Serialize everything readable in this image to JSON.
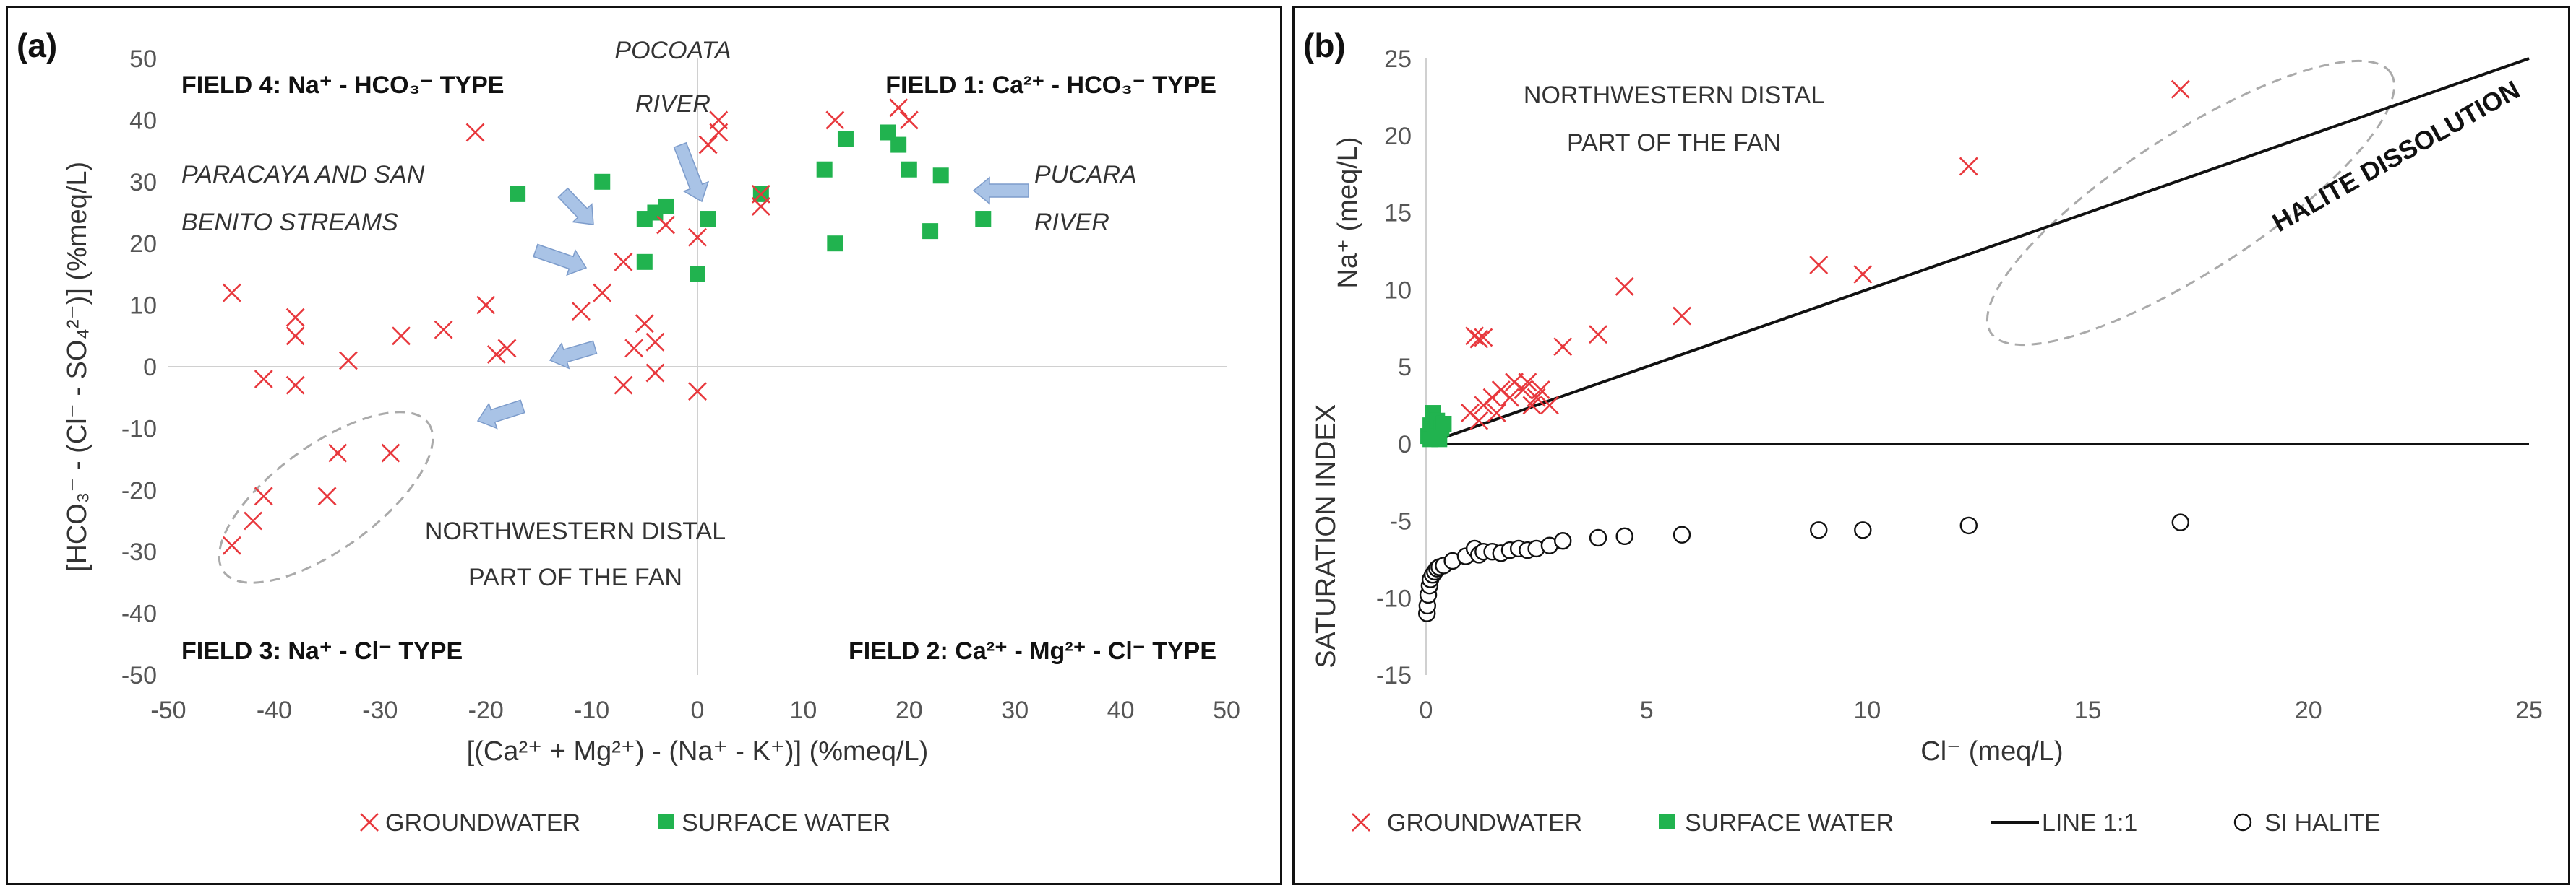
{
  "chart_data": [
    {
      "panel": "(a)",
      "type": "scatter",
      "xlabel": "[(Ca²⁺ + Mg²⁺) - (Na⁺ - K⁺)] (%meq/L)",
      "ylabel": "[HCO₃⁻ - (Cl⁻ - SO₄²⁻)] (%meq/L)",
      "xlim": [
        -50,
        50
      ],
      "ylim": [
        -50,
        50
      ],
      "xticks": [
        "-50",
        "-40",
        "-30",
        "-20",
        "-10",
        "0",
        "10",
        "20",
        "30",
        "40",
        "50"
      ],
      "yticks": [
        "50",
        "40",
        "30",
        "20",
        "10",
        "0",
        "-10",
        "-20",
        "-30",
        "-40",
        "-50"
      ],
      "grid": false,
      "legend_position": "bottom",
      "legend": [
        "GROUNDWATER",
        "SURFACE WATER"
      ],
      "field_labels": [
        "FIELD 4: Na⁺ - HCO₃⁻ TYPE",
        "FIELD 1: Ca²⁺ - HCO₃⁻ TYPE",
        "FIELD 3: Na⁺ - Cl⁻ TYPE",
        "FIELD 2: Ca²⁺ - Mg²⁺ - Cl⁻ TYPE"
      ],
      "annotations": {
        "pocoata": [
          "POCOATA",
          "RIVER"
        ],
        "paracaya": [
          "PARACAYA AND SAN",
          "BENITO STREAMS"
        ],
        "pucara": [
          "PUCARA",
          "RIVER"
        ],
        "distal": [
          "NORTHWESTERN DISTAL",
          "PART OF THE FAN"
        ]
      },
      "series": [
        {
          "name": "GROUNDWATER",
          "color": "#e8383d",
          "marker": "x",
          "points": [
            [
              -44,
              12
            ],
            [
              -38,
              8
            ],
            [
              -38,
              5
            ],
            [
              -38,
              -3
            ],
            [
              -41,
              -2
            ],
            [
              -33,
              1
            ],
            [
              -28,
              5
            ],
            [
              -24,
              6
            ],
            [
              -21,
              38
            ],
            [
              -20,
              10
            ],
            [
              -19,
              2
            ],
            [
              -18,
              3
            ],
            [
              -11,
              9
            ],
            [
              -9,
              12
            ],
            [
              -7,
              17
            ],
            [
              -6,
              3
            ],
            [
              -7,
              -3
            ],
            [
              -5,
              7
            ],
            [
              -4,
              4
            ],
            [
              -4,
              -1
            ],
            [
              -3,
              23
            ],
            [
              0,
              -4
            ],
            [
              0,
              21
            ],
            [
              1,
              36
            ],
            [
              2,
              38
            ],
            [
              2,
              40
            ],
            [
              6,
              26
            ],
            [
              6,
              28
            ],
            [
              13,
              40
            ],
            [
              19,
              42
            ],
            [
              20,
              40
            ],
            [
              -44,
              -29
            ],
            [
              -42,
              -25
            ],
            [
              -41,
              -21
            ],
            [
              -34,
              -14
            ],
            [
              -35,
              -21
            ],
            [
              -29,
              -14
            ]
          ]
        },
        {
          "name": "SURFACE WATER",
          "color": "#21b34f",
          "marker": "square",
          "points": [
            [
              -17,
              28
            ],
            [
              -9,
              30
            ],
            [
              -5,
              24
            ],
            [
              -5,
              17
            ],
            [
              -4,
              25
            ],
            [
              -3,
              26
            ],
            [
              0,
              15
            ],
            [
              1,
              24
            ],
            [
              6,
              28
            ],
            [
              12,
              32
            ],
            [
              13,
              20
            ],
            [
              14,
              37
            ],
            [
              18,
              38
            ],
            [
              19,
              36
            ],
            [
              20,
              32
            ],
            [
              22,
              22
            ],
            [
              23,
              31
            ],
            [
              27,
              24
            ]
          ]
        }
      ]
    },
    {
      "panel": "(b)",
      "type": "scatter",
      "xlabel": "Cl⁻ (meq/L)",
      "ylabel_top": "Na⁺ (meq/L)",
      "ylabel_bottom": "SATURATION INDEX",
      "xlim": [
        0,
        25
      ],
      "ylim": [
        -15,
        25
      ],
      "xticks": [
        "0",
        "5",
        "10",
        "15",
        "20",
        "25"
      ],
      "yticks": [
        "25",
        "20",
        "15",
        "10",
        "5",
        "0",
        "-5",
        "-10",
        "-15"
      ],
      "grid": false,
      "legend_position": "bottom",
      "annotations": {
        "distal": [
          "NORTHWESTERN DISTAL",
          "PART OF THE FAN"
        ],
        "halite": "HALITE DISSOLUTION"
      },
      "legend": [
        "GROUNDWATER",
        "SURFACE WATER",
        "LINE 1:1",
        "SI HALITE"
      ],
      "series": [
        {
          "name": "GROUNDWATER",
          "color": "#e8383d",
          "marker": "x",
          "points": [
            [
              1.1,
              7
            ],
            [
              1.2,
              6.8
            ],
            [
              1.3,
              6.9
            ],
            [
              1.0,
              2
            ],
            [
              1.2,
              1.5
            ],
            [
              1.3,
              2.5
            ],
            [
              1.5,
              3
            ],
            [
              1.6,
              2
            ],
            [
              1.7,
              3.5
            ],
            [
              1.9,
              3
            ],
            [
              2.0,
              4
            ],
            [
              2.2,
              3.5
            ],
            [
              2.3,
              4
            ],
            [
              2.4,
              2.5
            ],
            [
              2.5,
              3
            ],
            [
              2.6,
              3.5
            ],
            [
              2.8,
              2.5
            ],
            [
              3.1,
              6.3
            ],
            [
              3.9,
              7.1
            ],
            [
              4.5,
              10.2
            ],
            [
              5.8,
              8.3
            ],
            [
              8.9,
              11.6
            ],
            [
              9.9,
              11
            ],
            [
              12.3,
              18
            ],
            [
              17.1,
              23
            ]
          ]
        },
        {
          "name": "SURFACE WATER",
          "color": "#21b34f",
          "marker": "square",
          "points": [
            [
              0.05,
              0.5
            ],
            [
              0.1,
              1.2
            ],
            [
              0.15,
              2
            ],
            [
              0.2,
              0.8
            ],
            [
              0.25,
              1.5
            ],
            [
              0.3,
              0.3
            ],
            [
              0.35,
              1
            ],
            [
              0.4,
              1.3
            ],
            [
              0.1,
              0.3
            ],
            [
              0.2,
              0.4
            ]
          ]
        },
        {
          "name": "LINE 1:1",
          "color": "#000000",
          "line": [
            [
              0,
              0
            ],
            [
              25,
              25
            ]
          ]
        },
        {
          "name": "SI HALITE",
          "color": "#000000",
          "marker": "circle-open",
          "points": [
            [
              0.02,
              -11
            ],
            [
              0.03,
              -10.5
            ],
            [
              0.05,
              -9.8
            ],
            [
              0.08,
              -9.2
            ],
            [
              0.1,
              -8.8
            ],
            [
              0.15,
              -8.5
            ],
            [
              0.2,
              -8.3
            ],
            [
              0.25,
              -8.1
            ],
            [
              0.3,
              -8
            ],
            [
              0.4,
              -7.9
            ],
            [
              0.6,
              -7.6
            ],
            [
              0.9,
              -7.3
            ],
            [
              1.1,
              -6.8
            ],
            [
              1.2,
              -7.2
            ],
            [
              1.3,
              -7
            ],
            [
              1.5,
              -7
            ],
            [
              1.7,
              -7.1
            ],
            [
              1.9,
              -6.9
            ],
            [
              2.1,
              -6.8
            ],
            [
              2.3,
              -6.9
            ],
            [
              2.5,
              -6.8
            ],
            [
              2.8,
              -6.6
            ],
            [
              3.1,
              -6.3
            ],
            [
              3.9,
              -6.1
            ],
            [
              4.5,
              -6
            ],
            [
              5.8,
              -5.9
            ],
            [
              8.9,
              -5.6
            ],
            [
              9.9,
              -5.6
            ],
            [
              12.3,
              -5.3
            ],
            [
              17.1,
              -5.1
            ]
          ]
        }
      ]
    }
  ],
  "panel_labels": [
    "(a)",
    "(b)"
  ],
  "zero_line": "0"
}
